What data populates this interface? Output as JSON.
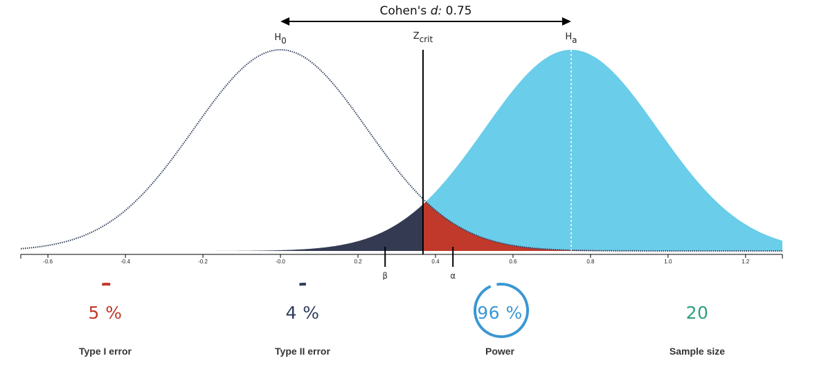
{
  "colors": {
    "null_curve": "#2f3d5c",
    "alt_fill": "#6acde9",
    "beta_fill": "#333a52",
    "alpha_fill": "#c0392b",
    "type1_color": "#c0392b",
    "type2_color": "#2f3d5c",
    "power_color": "#3b97d3",
    "sample_color": "#2e9e82",
    "axis": "#000000"
  },
  "chart_data": {
    "type": "area",
    "title_prefix": "Cohen's ",
    "title_italic": "d:",
    "title_value": "0.75",
    "effect_size": 0.75,
    "sample_size": 20,
    "sd": 0.2236,
    "z_crit": 0.3678,
    "null_label": "H",
    "null_sub": "0",
    "alt_label": "H",
    "alt_sub": "a",
    "crit_label": "Z",
    "crit_sub": "crit",
    "beta_marker": {
      "x": 0.27,
      "label": "β"
    },
    "alpha_marker": {
      "x": 0.445,
      "label": "α"
    },
    "xlim": [
      -0.67,
      1.295
    ],
    "x_ticks": [
      {
        "value": -0.6,
        "label": "-0.6"
      },
      {
        "value": -0.4,
        "label": "-0.4"
      },
      {
        "value": -0.2,
        "label": "-0.2"
      },
      {
        "value": 0.0,
        "label": "-0.0"
      },
      {
        "value": 0.2,
        "label": "0.2"
      },
      {
        "value": 0.4,
        "label": "0.4"
      },
      {
        "value": 0.6,
        "label": "0.6"
      },
      {
        "value": 0.8,
        "label": "0.8"
      },
      {
        "value": 1.0,
        "label": "1.0"
      },
      {
        "value": 1.2,
        "label": "1.2"
      }
    ]
  },
  "stats": {
    "type1": {
      "value": "5 %",
      "label": "Type I error",
      "fraction": 0.05
    },
    "type2": {
      "value": "4 %",
      "label": "Type II error",
      "fraction": 0.04
    },
    "power": {
      "value": "96 %",
      "label": "Power",
      "fraction": 0.96
    },
    "sample": {
      "value": "20",
      "label": "Sample size"
    }
  }
}
